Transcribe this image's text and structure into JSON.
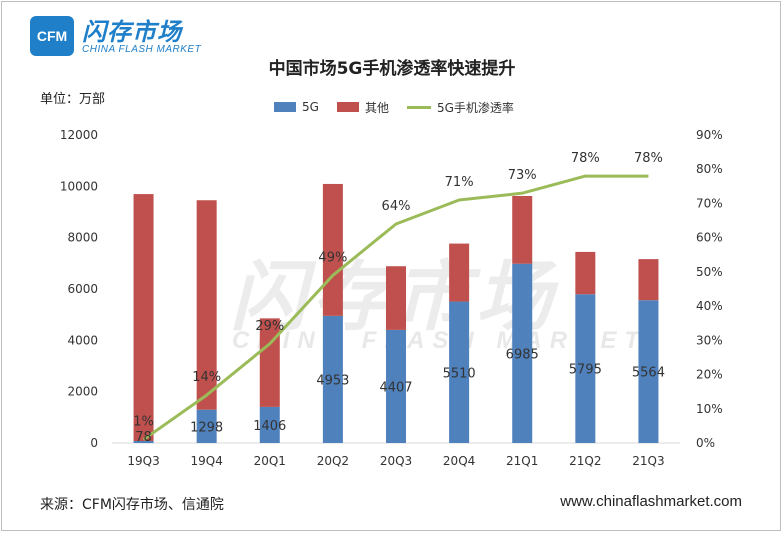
{
  "logo": {
    "badge": "CFM",
    "cn": "闪存市场",
    "en": "CHINA FLASH MARKET"
  },
  "unit_label": "单位：万部",
  "source": "来源：CFM闪存市场、信通院",
  "website": "www.chinaflashmarket.com",
  "watermark": {
    "cn": "闪存市场",
    "en": "CHINA FLASH MARKET"
  },
  "colors": {
    "series_5g": "#4f81bd",
    "series_other": "#c0504d",
    "series_rate": "#9bbb59",
    "brand": "#1f7fc9"
  },
  "chart_data": {
    "type": "bar",
    "stacked": true,
    "title": "中国市场5G手机渗透率快速提升",
    "categories": [
      "19Q3",
      "19Q4",
      "20Q1",
      "20Q2",
      "20Q3",
      "20Q4",
      "21Q1",
      "21Q2",
      "21Q3"
    ],
    "series": [
      {
        "name": "5G",
        "type": "bar",
        "axis": "left",
        "values": [
          78,
          1298,
          1406,
          4953,
          4407,
          5510,
          6985,
          5795,
          5564
        ],
        "labels": [
          "78",
          "1298",
          "1406",
          "4953",
          "4407",
          "5510",
          "6985",
          "5795",
          "5564"
        ]
      },
      {
        "name": "其他",
        "type": "bar",
        "axis": "left",
        "values": [
          9620,
          8160,
          3450,
          5140,
          2480,
          2260,
          2640,
          1650,
          1600
        ]
      },
      {
        "name": "5G手机渗透率",
        "type": "line",
        "axis": "right",
        "values": [
          1,
          14,
          29,
          49,
          64,
          71,
          73,
          78,
          78
        ],
        "labels": [
          "1%",
          "14%",
          "29%",
          "49%",
          "64%",
          "71%",
          "73%",
          "78%",
          "78%"
        ]
      }
    ],
    "ylim_left": [
      0,
      12000
    ],
    "yticks_left": [
      "0",
      "2000",
      "4000",
      "6000",
      "8000",
      "10000",
      "12000"
    ],
    "ylim_right": [
      0,
      90
    ],
    "yticks_right": [
      "0%",
      "10%",
      "20%",
      "30%",
      "40%",
      "50%",
      "60%",
      "70%",
      "80%",
      "90%"
    ],
    "legend_position": "top-center",
    "grid": false
  }
}
